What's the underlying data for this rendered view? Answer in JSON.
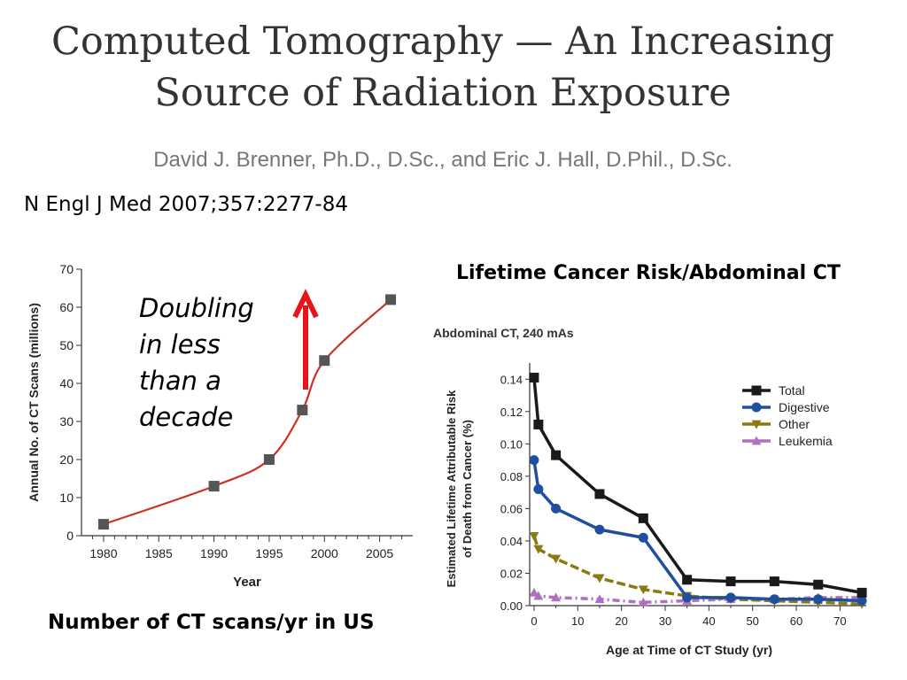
{
  "slide": {
    "title_line1": "Computed Tomography — An Increasing",
    "title_line2": "Source of Radiation Exposure",
    "authors": "David J. Brenner, Ph.D., D.Sc., and Eric J. Hall, D.Phil., D.Sc.",
    "citation": "N Engl J Med 2007;357:2277-84",
    "caption_left": "Number of CT scans/yr in US",
    "caption_right": "Lifetime Cancer Risk/Abdominal CT",
    "annotation": [
      "Doubling",
      "in less",
      "than a",
      "decade"
    ],
    "arrow_color": "#e8141b"
  },
  "chart_data": [
    {
      "type": "line",
      "title": "",
      "xlabel": "Year",
      "ylabel": "Annual No. of CT Scans (millions)",
      "xlim": [
        1978,
        2008
      ],
      "ylim": [
        0,
        70
      ],
      "xticks": [
        1980,
        1985,
        1990,
        1995,
        2000,
        2005
      ],
      "yticks": [
        0,
        10,
        20,
        30,
        40,
        50,
        60,
        70
      ],
      "line_color": "#cc3322",
      "marker_color": "#555555",
      "series": [
        {
          "x": [
            1980,
            1990,
            1995,
            1998,
            2000,
            2006
          ],
          "values": [
            3,
            13,
            20,
            33,
            46,
            62
          ]
        }
      ]
    },
    {
      "type": "line",
      "title": "Abdominal CT, 240 mAs",
      "xlabel": "Age at Time of CT Study (yr)",
      "ylabel": "Estimated Lifetime Attributable Risk of Death from Cancer (%)",
      "xlim": [
        -1,
        76
      ],
      "ylim": [
        0,
        0.15
      ],
      "xticks": [
        0,
        10,
        20,
        30,
        40,
        50,
        60,
        70
      ],
      "yticks": [
        "0.00",
        "0.02",
        "0.04",
        "0.06",
        "0.08",
        "0.10",
        "0.12",
        "0.14"
      ],
      "legend_position": "top-right",
      "x": [
        0,
        1,
        5,
        15,
        25,
        35,
        45,
        55,
        65,
        75
      ],
      "series": [
        {
          "name": "Total",
          "color": "#1a1a1a",
          "marker": "square",
          "values": [
            0.141,
            0.112,
            0.093,
            0.069,
            0.054,
            0.016,
            0.015,
            0.015,
            0.013,
            0.008
          ]
        },
        {
          "name": "Digestive",
          "color": "#1f4f9e",
          "marker": "circle",
          "values": [
            0.09,
            0.072,
            0.06,
            0.047,
            0.042,
            0.005,
            0.005,
            0.004,
            0.004,
            0.003
          ]
        },
        {
          "name": "Other",
          "color": "#8a7a12",
          "marker": "triangle-down",
          "values": [
            0.043,
            0.035,
            0.029,
            0.017,
            0.01,
            0.006,
            0.004,
            0.003,
            0.002,
            0.001
          ]
        },
        {
          "name": "Leukemia",
          "color": "#b070c0",
          "marker": "triangle-up",
          "values": [
            0.008,
            0.006,
            0.005,
            0.004,
            0.002,
            0.003,
            0.004,
            0.004,
            0.005,
            0.005
          ]
        }
      ]
    }
  ]
}
